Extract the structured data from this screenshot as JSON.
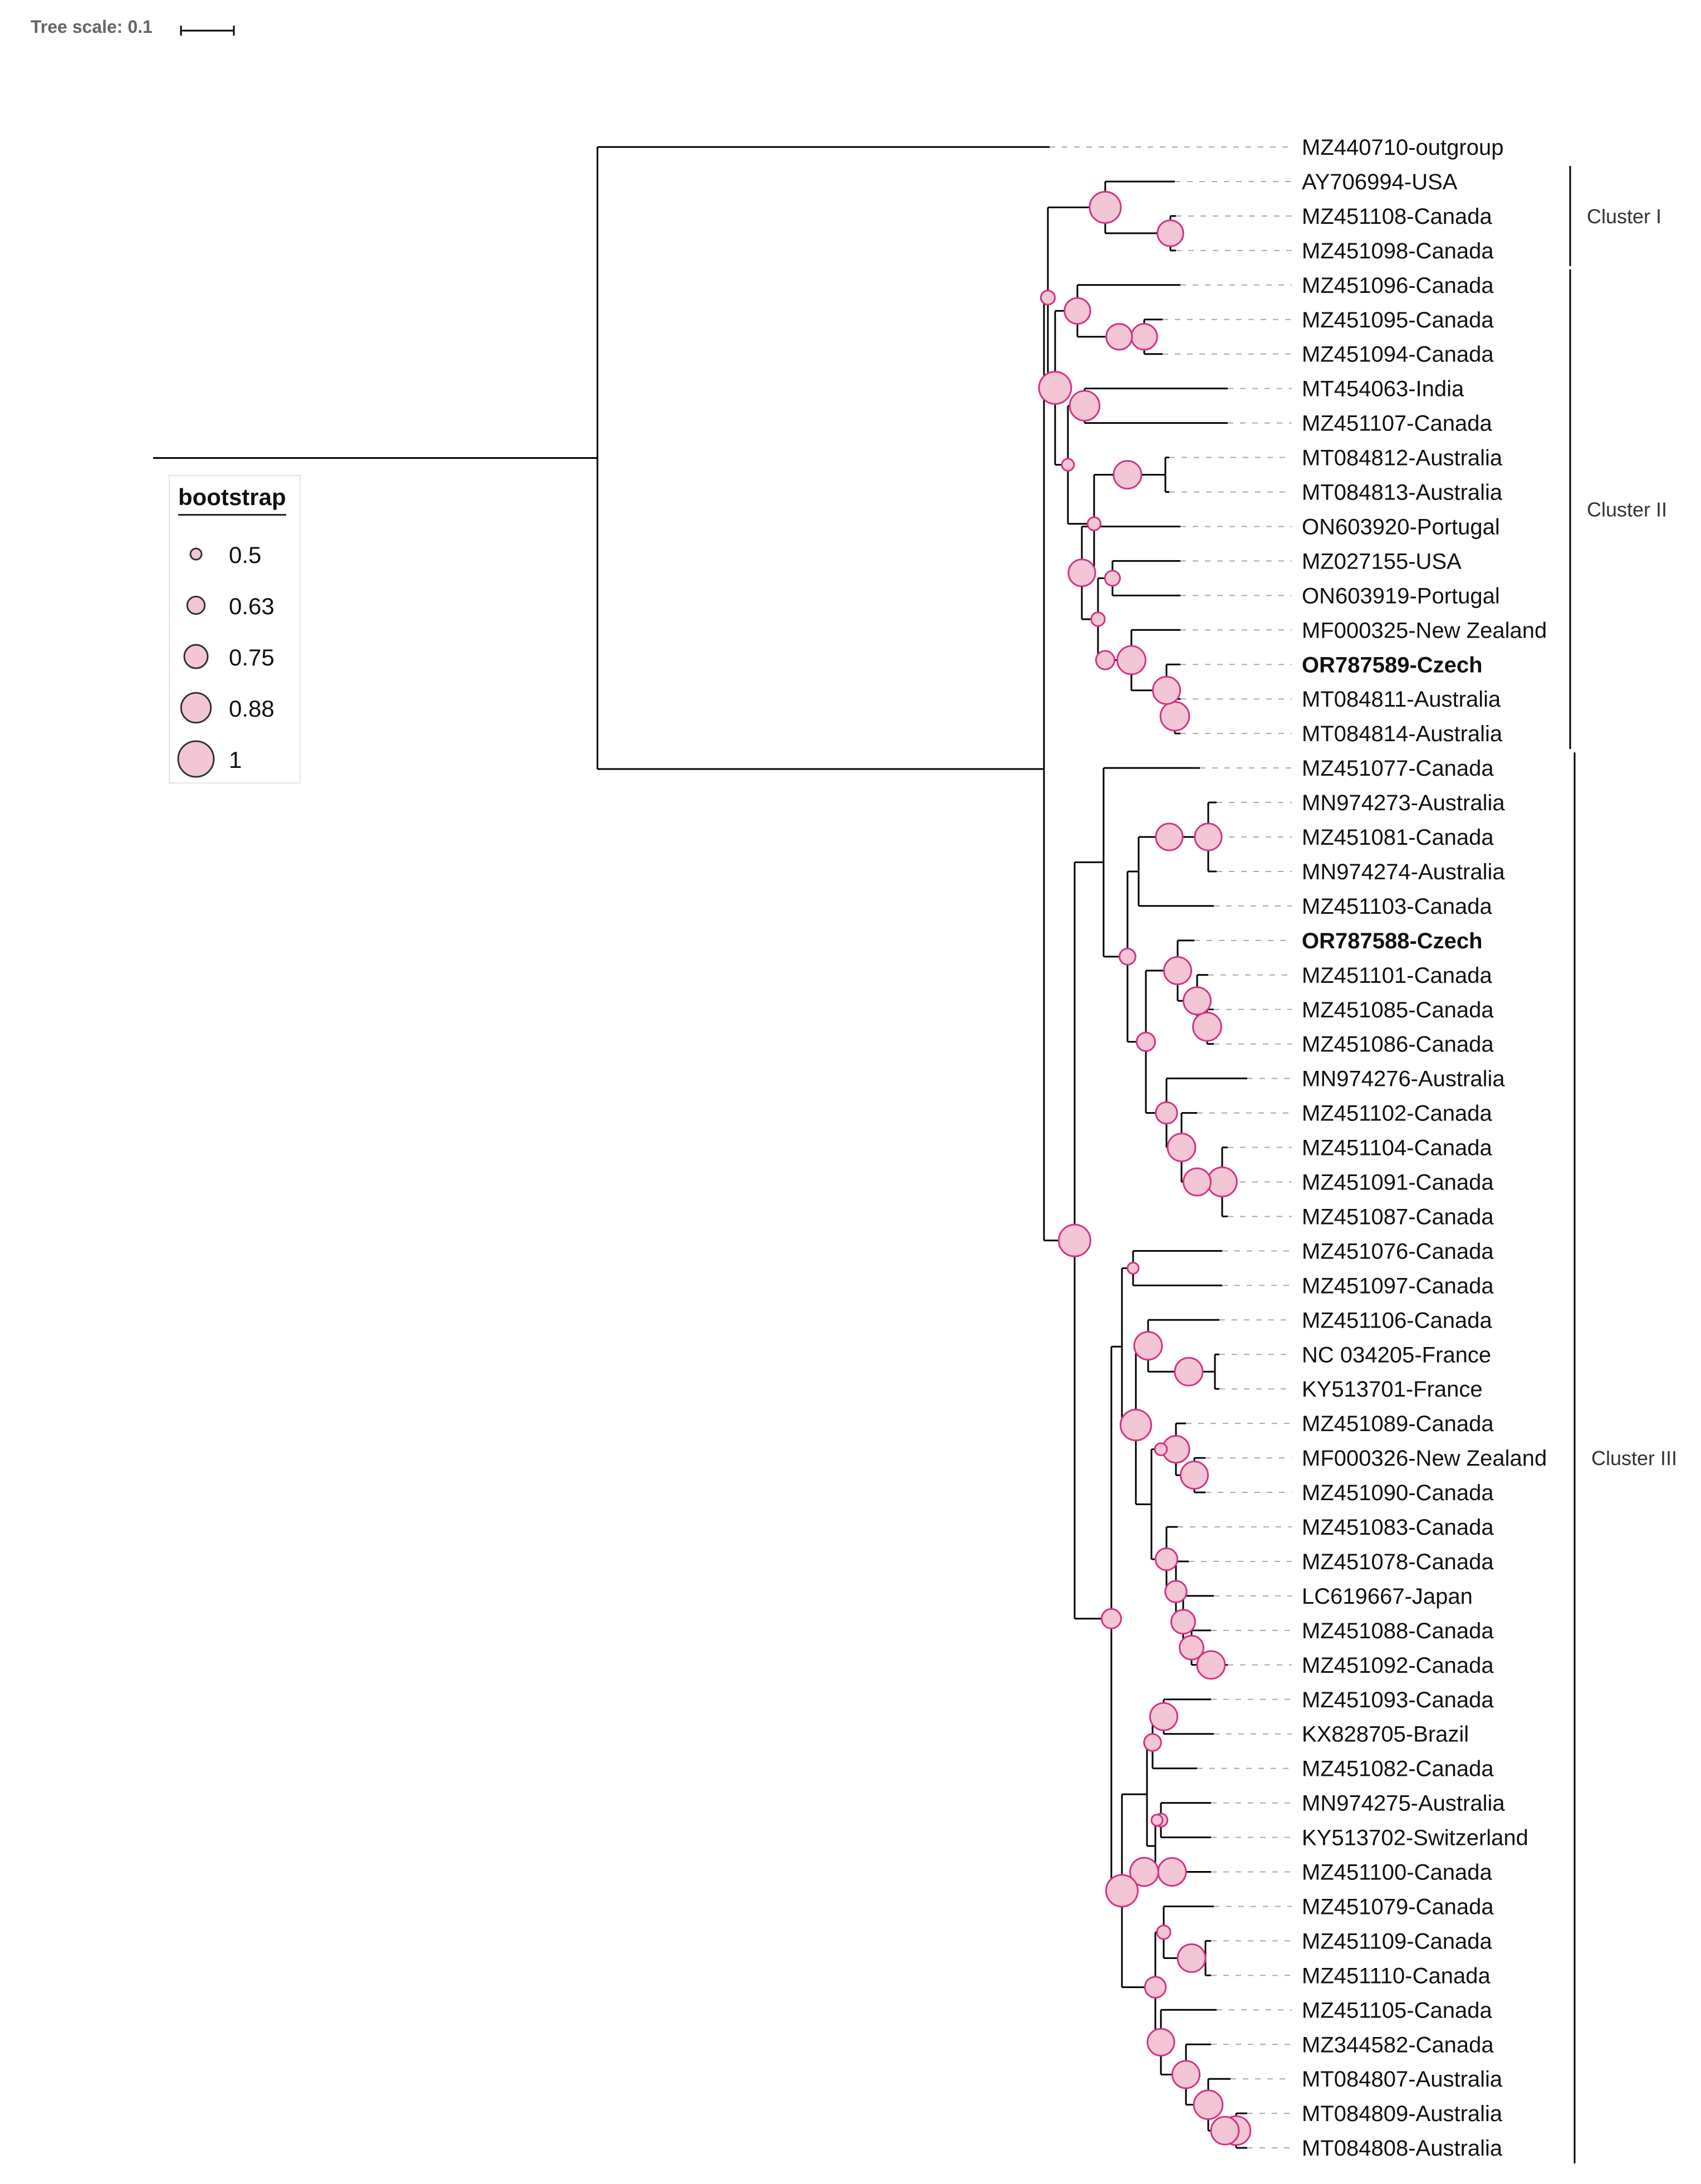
{
  "tree_scale": {
    "label": "Tree scale: 0.1",
    "value": 0.1
  },
  "colors": {
    "branch": "#000000",
    "guide": "#aaaaaa",
    "node_fill": "#f2c6d4",
    "node_stroke": "#d4318a"
  },
  "legend": {
    "title": "bootstrap",
    "entries": [
      {
        "label": "0.5",
        "value": 0.5
      },
      {
        "label": "0.63",
        "value": 0.63
      },
      {
        "label": "0.75",
        "value": 0.75
      },
      {
        "label": "0.88",
        "value": 0.88
      },
      {
        "label": "1",
        "value": 1
      }
    ]
  },
  "leaves": [
    {
      "label": "MZ440710-outgroup",
      "bold": false
    },
    {
      "label": "AY706994-USA",
      "bold": false
    },
    {
      "label": "MZ451108-Canada",
      "bold": false
    },
    {
      "label": "MZ451098-Canada",
      "bold": false
    },
    {
      "label": "MZ451096-Canada",
      "bold": false
    },
    {
      "label": "MZ451095-Canada",
      "bold": false
    },
    {
      "label": "MZ451094-Canada",
      "bold": false
    },
    {
      "label": "MT454063-India",
      "bold": false
    },
    {
      "label": "MZ451107-Canada",
      "bold": false
    },
    {
      "label": "MT084812-Australia",
      "bold": false
    },
    {
      "label": "MT084813-Australia",
      "bold": false
    },
    {
      "label": "ON603920-Portugal",
      "bold": false
    },
    {
      "label": "MZ027155-USA",
      "bold": false
    },
    {
      "label": "ON603919-Portugal",
      "bold": false
    },
    {
      "label": "MF000325-New Zealand",
      "bold": false
    },
    {
      "label": "OR787589-Czech",
      "bold": true
    },
    {
      "label": "MT084811-Australia",
      "bold": false
    },
    {
      "label": "MT084814-Australia",
      "bold": false
    },
    {
      "label": "MZ451077-Canada",
      "bold": false
    },
    {
      "label": "MN974273-Australia",
      "bold": false
    },
    {
      "label": "MZ451081-Canada",
      "bold": false
    },
    {
      "label": "MN974274-Australia",
      "bold": false
    },
    {
      "label": "MZ451103-Canada",
      "bold": false
    },
    {
      "label": "OR787588-Czech",
      "bold": true
    },
    {
      "label": "MZ451101-Canada",
      "bold": false
    },
    {
      "label": "MZ451085-Canada",
      "bold": false
    },
    {
      "label": "MZ451086-Canada",
      "bold": false
    },
    {
      "label": "MN974276-Australia",
      "bold": false
    },
    {
      "label": "MZ451102-Canada",
      "bold": false
    },
    {
      "label": "MZ451104-Canada",
      "bold": false
    },
    {
      "label": "MZ451091-Canada",
      "bold": false
    },
    {
      "label": "MZ451087-Canada",
      "bold": false
    },
    {
      "label": "MZ451076-Canada",
      "bold": false
    },
    {
      "label": "MZ451097-Canada",
      "bold": false
    },
    {
      "label": "MZ451106-Canada",
      "bold": false
    },
    {
      "label": "NC 034205-France",
      "bold": false
    },
    {
      "label": "KY513701-France",
      "bold": false
    },
    {
      "label": "MZ451089-Canada",
      "bold": false
    },
    {
      "label": "MF000326-New Zealand",
      "bold": false
    },
    {
      "label": "MZ451090-Canada",
      "bold": false
    },
    {
      "label": "MZ451083-Canada",
      "bold": false
    },
    {
      "label": "MZ451078-Canada",
      "bold": false
    },
    {
      "label": "LC619667-Japan",
      "bold": false
    },
    {
      "label": "MZ451088-Canada",
      "bold": false
    },
    {
      "label": "MZ451092-Canada",
      "bold": false
    },
    {
      "label": "MZ451093-Canada",
      "bold": false
    },
    {
      "label": "KX828705-Brazil",
      "bold": false
    },
    {
      "label": "MZ451082-Canada",
      "bold": false
    },
    {
      "label": "MN974275-Australia",
      "bold": false
    },
    {
      "label": "KY513702-Switzerland",
      "bold": false
    },
    {
      "label": "MZ451100-Canada",
      "bold": false
    },
    {
      "label": "MZ451079-Canada",
      "bold": false
    },
    {
      "label": "MZ451109-Canada",
      "bold": false
    },
    {
      "label": "MZ451110-Canada",
      "bold": false
    },
    {
      "label": "MZ451105-Canada",
      "bold": false
    },
    {
      "label": "MZ344582-Canada",
      "bold": false
    },
    {
      "label": "MT084807-Australia",
      "bold": false
    },
    {
      "label": "MT084809-Australia",
      "bold": false
    },
    {
      "label": "MT084808-Australia",
      "bold": false
    }
  ],
  "clusters": [
    {
      "label": "Cluster I",
      "first_leaf": 1,
      "last_leaf": 3
    },
    {
      "label": "Cluster II",
      "first_leaf": 4,
      "last_leaf": 17
    },
    {
      "label": "Cluster III",
      "first_leaf": 18,
      "last_leaf": 58
    }
  ]
}
